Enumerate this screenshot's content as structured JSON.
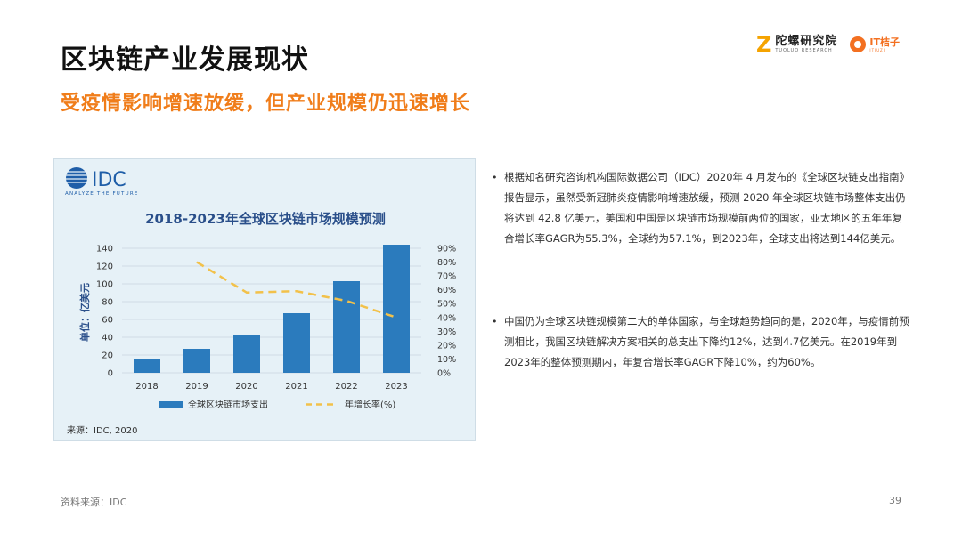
{
  "page": {
    "title": "区块链产业发展现状",
    "subtitle": "受疫情影响增速放缓，但产业规模仍迅速增长"
  },
  "logos": {
    "tuoluo_mark": "Z",
    "tuoluo_cn": "陀螺研究院",
    "tuoluo_en": "TUOLUO RESEARCH",
    "it_cn": "IT桔子",
    "it_en": "ITJUZI"
  },
  "chart_brand": {
    "name": "IDC",
    "tagline": "ANALYZE THE FUTURE"
  },
  "chart_data": {
    "type": "bar",
    "title": "2018-2023年全球区块链市场规模预测",
    "ylabel": "单位：亿美元",
    "categories": [
      "2018",
      "2019",
      "2020",
      "2021",
      "2022",
      "2023"
    ],
    "ylim": [
      0,
      140
    ],
    "y_ticks": [
      "0",
      "20",
      "40",
      "60",
      "80",
      "100",
      "120",
      "140"
    ],
    "y2lim": [
      0,
      0.9
    ],
    "y2_ticks": [
      "0%",
      "10%",
      "20%",
      "30%",
      "40%",
      "50%",
      "60%",
      "70%",
      "80%",
      "90%"
    ],
    "series": [
      {
        "name": "全球区块链市场支出",
        "kind": "bar",
        "axis": "left",
        "color": "#2b7bbd",
        "values": [
          15,
          27,
          42,
          67,
          103,
          144
        ]
      },
      {
        "name": "年增长率(%)",
        "kind": "line",
        "axis": "right",
        "color": "#f2c14a",
        "dashed": true,
        "values": [
          null,
          0.8,
          0.58,
          0.59,
          0.52,
          0.4
        ]
      }
    ],
    "grid": true,
    "legend_position": "bottom",
    "source": "来源：IDC, 2020"
  },
  "bullets": [
    "根据知名研究咨询机构国际数据公司（IDC）2020年 4 月发布的《全球区块链支出指南》报告显示，虽然受新冠肺炎疫情影响增速放缓，预测 2020 年全球区块链市场整体支出仍将达到 42.8 亿美元，美国和中国是区块链市场规模前两位的国家，亚太地区的五年年复合增长率GAGR为55.3%，全球约为57.1%，到2023年，全球支出将达到144亿美元。",
    "中国仍为全球区块链规模第二大的单体国家，与全球趋势趋同的是，2020年，与疫情前预测相比，我国区块链解决方案相关的总支出下降约12%，达到4.7亿美元。在2019年到2023年的整体预测期内，年复合增长率GAGR下降10%，约为60%。"
  ],
  "footer": {
    "source": "资料来源：IDC",
    "page_number": "39"
  }
}
